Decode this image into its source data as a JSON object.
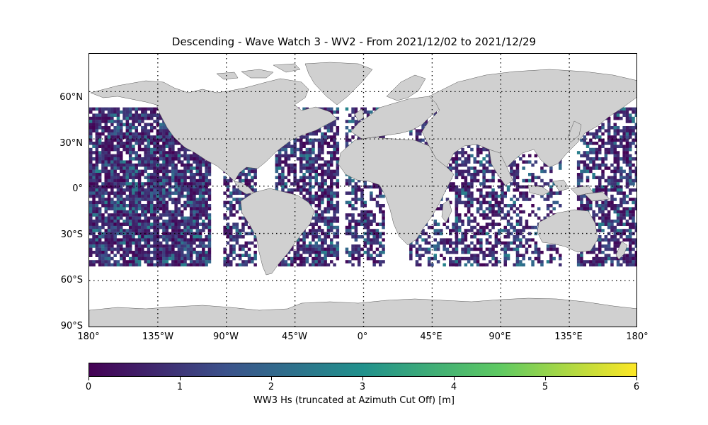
{
  "title": "Descending - Wave Watch 3 - WV2 - From 2021/12/02 to 2021/12/29",
  "map": {
    "land_color": "#d0d0d0",
    "graticule_style": "dotted",
    "lat_labels": [
      "60°N",
      "30°N",
      "0°",
      "30°S",
      "60°S",
      "90°S"
    ],
    "lon_labels": [
      "180°",
      "135°W",
      "90°W",
      "45°W",
      "0°",
      "45°E",
      "90°E",
      "135°E",
      "180°"
    ],
    "data_lat_range": [
      -50,
      50
    ]
  },
  "colorbar": {
    "colormap": "viridis",
    "colors": [
      "#440154",
      "#3b528b",
      "#21918c",
      "#5ec962",
      "#fde725"
    ],
    "ticks": [
      "0",
      "1",
      "2",
      "3",
      "4",
      "5",
      "6"
    ],
    "range": [
      0,
      6
    ],
    "label": "WW3 Hs (truncated at Azimuth Cut Off) [m]"
  }
}
